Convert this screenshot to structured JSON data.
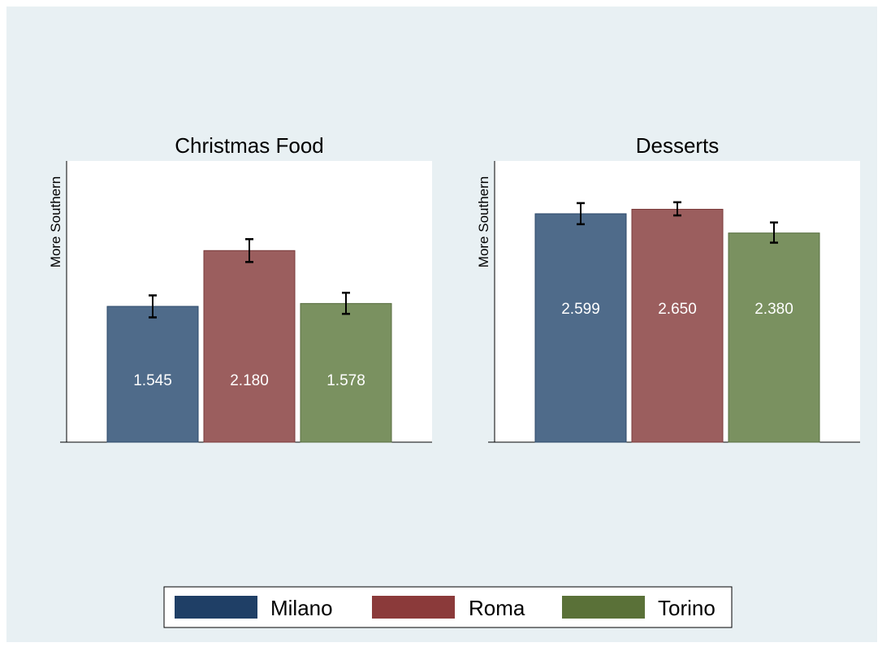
{
  "chart_data": [
    {
      "type": "bar",
      "title": "Christmas Food",
      "ylabel": "More Southern",
      "xlabel": "",
      "categories": [
        "Milano",
        "Roma",
        "Torino"
      ],
      "values": [
        1.545,
        2.18,
        1.578
      ],
      "value_labels": [
        "1.545",
        "2.180",
        "1.578"
      ],
      "error_low": [
        1.42,
        2.05,
        1.46
      ],
      "error_high": [
        1.67,
        2.31,
        1.7
      ],
      "ylim": [
        0,
        3.2
      ],
      "grid": false,
      "y_ticks_shown": false
    },
    {
      "type": "bar",
      "title": "Desserts",
      "ylabel": "More Southern",
      "xlabel": "",
      "categories": [
        "Milano",
        "Roma",
        "Torino"
      ],
      "values": [
        2.599,
        2.65,
        2.38
      ],
      "value_labels": [
        "2.599",
        "2.650",
        "2.380"
      ],
      "error_low": [
        2.48,
        2.58,
        2.27
      ],
      "error_high": [
        2.72,
        2.73,
        2.5
      ],
      "ylim": [
        0,
        3.2
      ],
      "grid": false,
      "y_ticks_shown": false
    }
  ],
  "legend": {
    "placement": "bottom",
    "items": [
      {
        "label": "Milano",
        "color": "#1f3f66"
      },
      {
        "label": "Roma",
        "color": "#8b3a3a"
      },
      {
        "label": "Torino",
        "color": "#5a7138"
      }
    ]
  },
  "colors": {
    "background": "#e8f0f3",
    "plot_background": "#ffffff",
    "bars": [
      "#4f6b8a",
      "#9b5e5e",
      "#7a9160"
    ],
    "bar_borders": [
      "#2d4a6a",
      "#7a3a3a",
      "#586e40"
    ],
    "error_bar": "#000000",
    "value_label": "#ffffff"
  }
}
